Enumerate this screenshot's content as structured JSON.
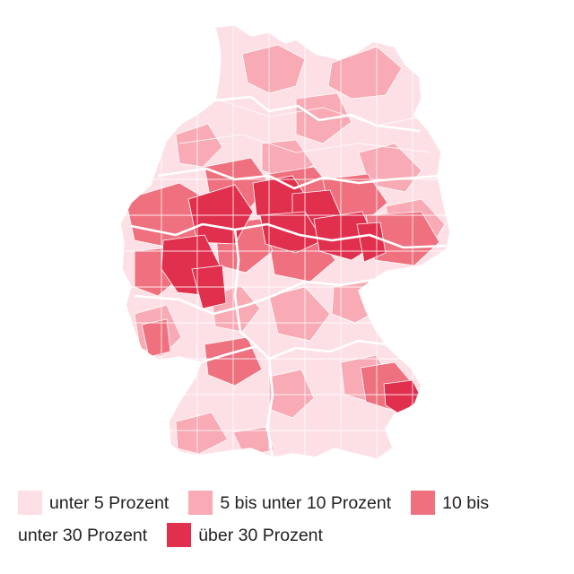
{
  "colors": {
    "class_1": "#fde0e6",
    "class_2": "#f8aab5",
    "class_3": "#ef717f",
    "class_4": "#e0304e",
    "border": "#ffffff"
  },
  "map": {
    "region": "Deutschland",
    "dominant_class_north_south": "unter 5 Prozent",
    "hotspot_bands": [
      "Nordrhein-Westfalen / Hessen",
      "Niedersachsen-Süd / Sachsen-Anhalt / Thüringen",
      "Südost-Bayern"
    ]
  },
  "legend": {
    "items": [
      {
        "label_a": "unter 5 Prozent",
        "label_b": "",
        "color_key": "class_1"
      },
      {
        "label_a": "5 bis unter 10 Prozent",
        "label_b": "",
        "color_key": "class_2"
      },
      {
        "label_a": "10 bis",
        "label_b": "unter 30 Prozent",
        "color_key": "class_3"
      },
      {
        "label_a": "über 30 Prozent",
        "label_b": "",
        "color_key": "class_4"
      }
    ]
  }
}
